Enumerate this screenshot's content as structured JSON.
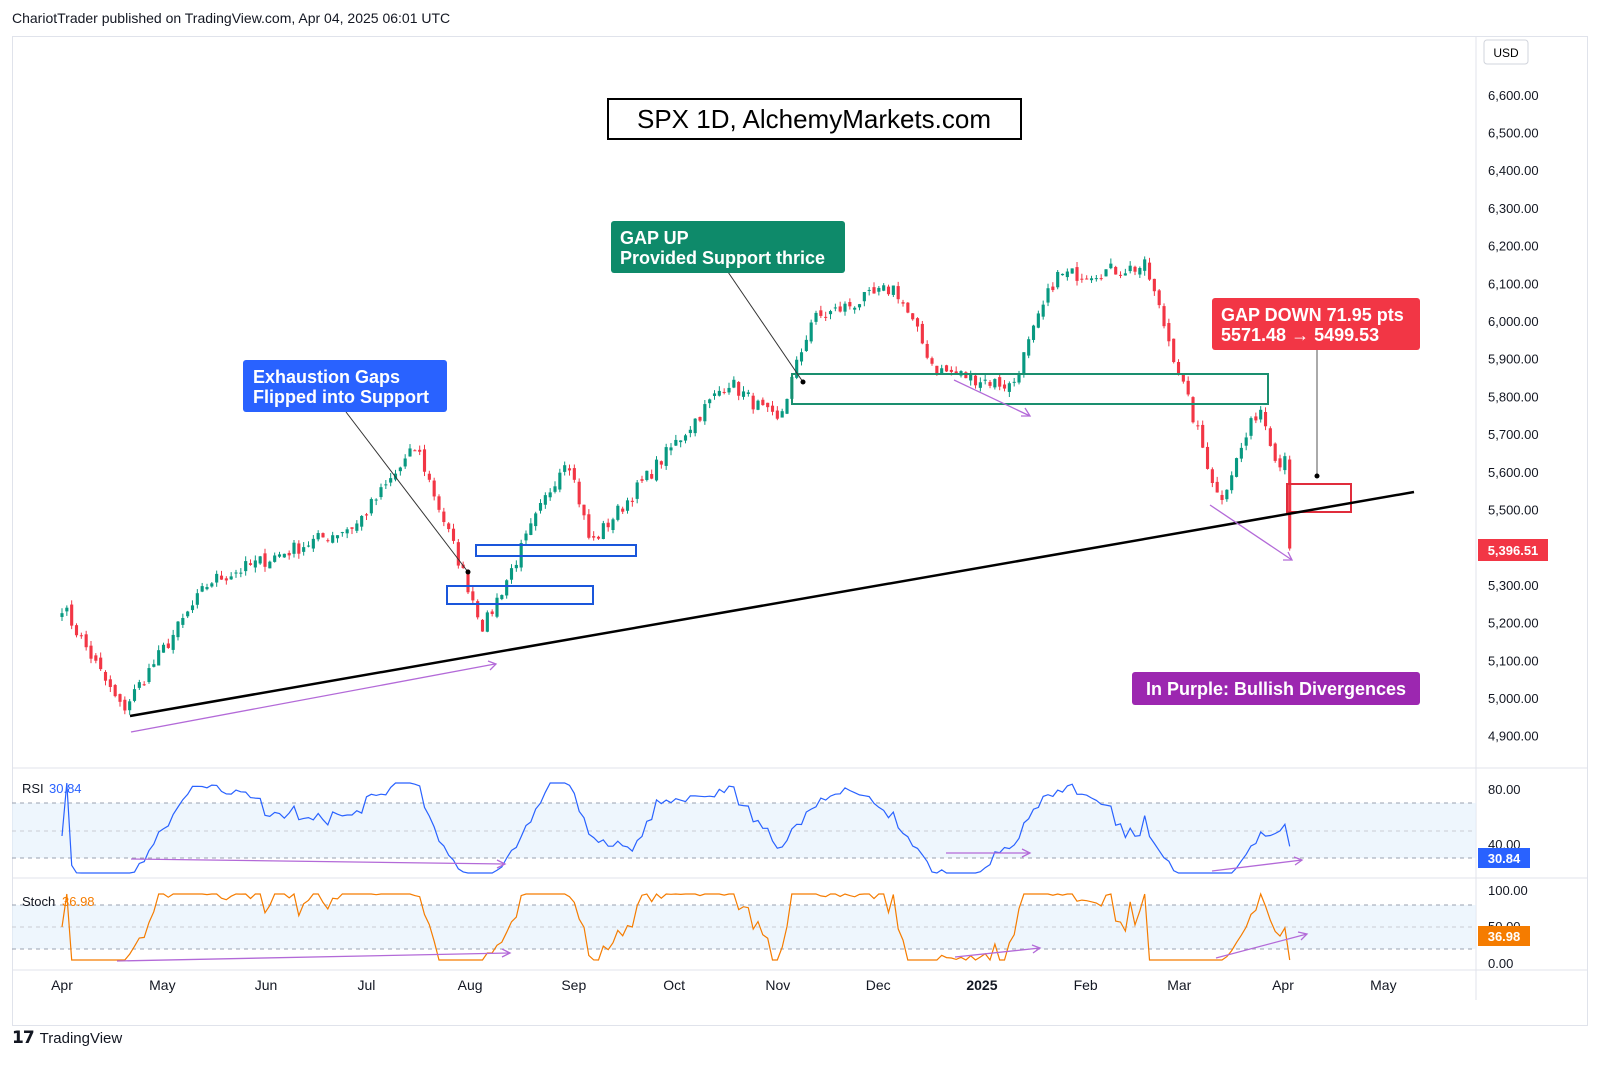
{
  "header": {
    "publisher_text": "ChariotTrader published on TradingView.com, Apr 04, 2025 06:01 UTC",
    "currency": "USD"
  },
  "annotations": {
    "chart_title": "SPX 1D, AlchemyMarkets.com",
    "exhaustion_gaps": [
      "Exhaustion Gaps",
      "Flipped into Support"
    ],
    "gap_up": [
      "GAP UP",
      "Provided Support thrice"
    ],
    "gap_down": [
      "GAP DOWN 71.95 pts",
      "5571.48 → 5499.53"
    ],
    "bullish_divergence": "In Purple: Bullish Divergences"
  },
  "indicators": {
    "rsi": {
      "label": "RSI",
      "value": "30.84",
      "levels": [
        "80.00",
        "40.00"
      ]
    },
    "stoch": {
      "label": "Stoch",
      "value": "36.98",
      "levels": [
        "100.00",
        "50.00",
        "0.00"
      ]
    }
  },
  "colors": {
    "up": "#089981",
    "down": "#f23645",
    "trendline": "#000000",
    "gap_up_box": "#1a8f6f",
    "exhaustion_box": "#1a56db",
    "gap_down_box": "#e02d3c",
    "divergence": "#b36ad8",
    "rsi_line": "#2962ff",
    "stoch_line": "#f57c00",
    "exhaustion_label": "#2962ff",
    "gapup_label": "#0e8a6a",
    "gapdown_label": "#f23645",
    "divergence_label": "#9c27b0"
  },
  "footer": {
    "brand": "TradingView"
  },
  "chart_data": {
    "type": "candlestick",
    "symbol": "SPX",
    "timeframe": "1D",
    "price_axis_ticks": [
      "6,600.00",
      "6,500.00",
      "6,400.00",
      "6,300.00",
      "6,200.00",
      "6,100.00",
      "6,000.00",
      "5,900.00",
      "5,800.00",
      "5,700.00",
      "5,600.00",
      "5,500.00",
      "5,300.00",
      "5,200.00",
      "5,100.00",
      "5,000.00",
      "4,900.00"
    ],
    "last_price_label": "5,396.51",
    "time_axis_labels": [
      "Apr",
      "May",
      "Jun",
      "Jul",
      "Aug",
      "Sep",
      "Oct",
      "Nov",
      "Dec",
      "2025",
      "Feb",
      "Mar",
      "Apr",
      "May"
    ],
    "ylim": [
      4860,
      6650
    ],
    "key_points": [
      {
        "date": "2024-04-01",
        "close": 5245
      },
      {
        "date": "2024-04-19",
        "close": 4967
      },
      {
        "date": "2024-05-15",
        "close": 5308
      },
      {
        "date": "2024-06-28",
        "close": 5460
      },
      {
        "date": "2024-07-16",
        "close": 5667
      },
      {
        "date": "2024-08-05",
        "close": 5186
      },
      {
        "date": "2024-08-30",
        "close": 5648
      },
      {
        "date": "2024-09-06",
        "close": 5408
      },
      {
        "date": "2024-10-17",
        "close": 5841
      },
      {
        "date": "2024-11-01",
        "close": 5729
      },
      {
        "date": "2024-11-11",
        "close": 6001
      },
      {
        "date": "2024-12-06",
        "close": 6090
      },
      {
        "date": "2024-12-18",
        "close": 5872
      },
      {
        "date": "2025-01-10",
        "close": 5827
      },
      {
        "date": "2025-01-23",
        "close": 6119
      },
      {
        "date": "2025-02-19",
        "close": 6144
      },
      {
        "date": "2025-03-13",
        "close": 5522
      },
      {
        "date": "2025-03-25",
        "close": 5777
      },
      {
        "date": "2025-03-31",
        "close": 5612
      },
      {
        "date": "2025-04-02",
        "close": 5671
      },
      {
        "date": "2025-04-03",
        "close": 5396.51
      }
    ],
    "gap_zones": [
      {
        "name": "exhaustion-gap-1",
        "from": 5400,
        "to": 5430
      },
      {
        "name": "exhaustion-gap-2",
        "from": 5250,
        "to": 5300
      },
      {
        "name": "gap-up",
        "from": 5783,
        "to": 5863
      },
      {
        "name": "gap-down",
        "from": 5499.53,
        "to": 5571.48
      }
    ],
    "trendline": {
      "from": {
        "date": "2024-04-19",
        "price": 4953
      },
      "to": {
        "date": "2025-04-22",
        "price": 5547
      }
    }
  }
}
